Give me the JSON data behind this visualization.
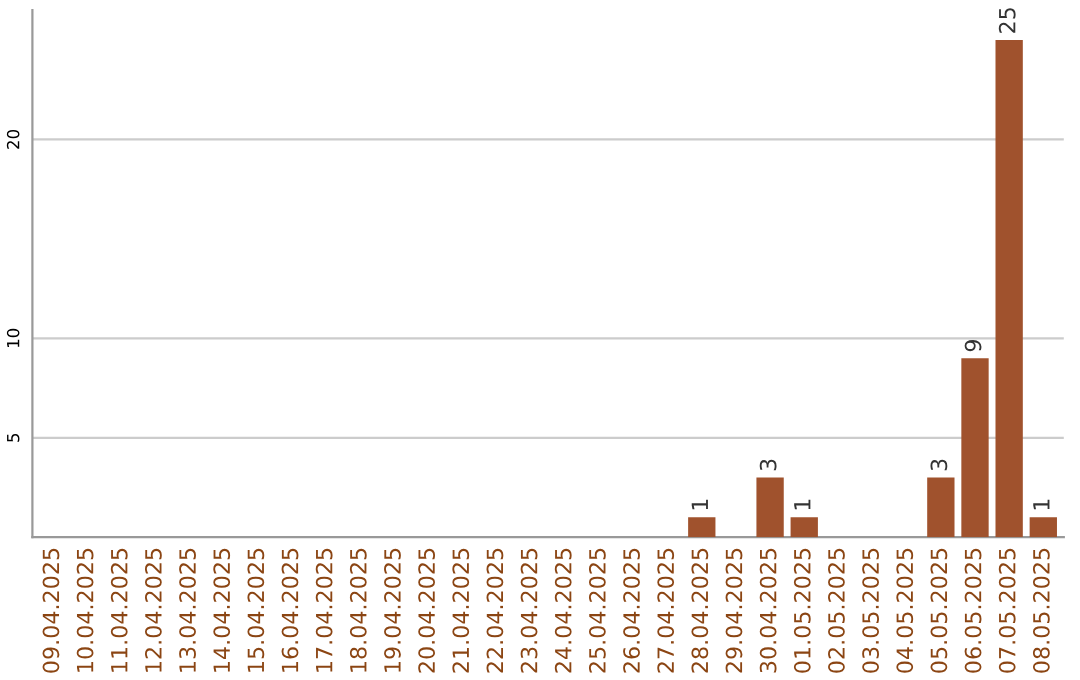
{
  "chart_data": {
    "type": "bar",
    "categories": [
      "09.04.2025",
      "10.04.2025",
      "11.04.2025",
      "12.04.2025",
      "13.04.2025",
      "14.04.2025",
      "15.04.2025",
      "16.04.2025",
      "17.04.2025",
      "18.04.2025",
      "19.04.2025",
      "20.04.2025",
      "21.04.2025",
      "22.04.2025",
      "23.04.2025",
      "24.04.2025",
      "25.04.2025",
      "26.04.2025",
      "27.04.2025",
      "28.04.2025",
      "29.04.2025",
      "30.04.2025",
      "01.05.2025",
      "02.05.2025",
      "03.05.2025",
      "04.05.2025",
      "05.05.2025",
      "06.05.2025",
      "07.05.2025",
      "08.05.2025"
    ],
    "values": [
      0,
      0,
      0,
      0,
      0,
      0,
      0,
      0,
      0,
      0,
      0,
      0,
      0,
      0,
      0,
      0,
      0,
      0,
      0,
      1,
      0,
      3,
      1,
      0,
      0,
      0,
      3,
      9,
      25,
      1
    ],
    "value_labels": [
      null,
      null,
      null,
      null,
      null,
      null,
      null,
      null,
      null,
      null,
      null,
      null,
      null,
      null,
      null,
      null,
      null,
      null,
      null,
      "1",
      null,
      "3",
      "1",
      null,
      null,
      null,
      "3",
      "9",
      "25",
      "1"
    ],
    "color": "#a0522d",
    "ylim": [
      0,
      26.5
    ],
    "yticks": [
      5,
      10,
      20
    ],
    "grid": "y"
  }
}
